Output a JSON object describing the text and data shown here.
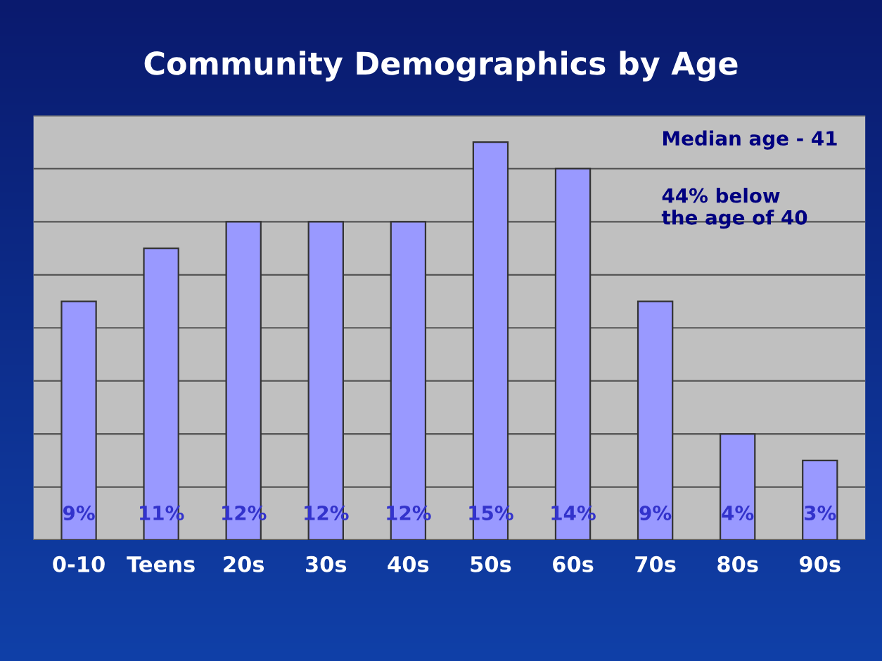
{
  "chart_data": {
    "type": "bar",
    "title": "Community Demographics by Age",
    "categories": [
      "0-10",
      "Teens",
      "20s",
      "30s",
      "40s",
      "50s",
      "60s",
      "70s",
      "80s",
      "90s"
    ],
    "values": [
      9,
      11,
      12,
      12,
      12,
      15,
      14,
      9,
      4,
      3
    ],
    "value_labels": [
      "9%",
      "11%",
      "12%",
      "12%",
      "12%",
      "15%",
      "14%",
      "9%",
      "4%",
      "3%"
    ],
    "color": "#9999ff",
    "ylim": [
      0,
      16
    ],
    "yticks": [
      {
        "value": 0,
        "label": null
      },
      {
        "value": 2,
        "label": null
      },
      {
        "value": 4,
        "label": null
      },
      {
        "value": 6,
        "label": null
      },
      {
        "value": 8,
        "label": null
      },
      {
        "value": 10,
        "label": null
      },
      {
        "value": 12,
        "label": null
      },
      {
        "value": 14,
        "label": null
      },
      {
        "value": 16,
        "label": null
      }
    ],
    "grid": "y",
    "annotations": [
      "Median age - 41",
      "44% below\nthe age of 40"
    ]
  }
}
